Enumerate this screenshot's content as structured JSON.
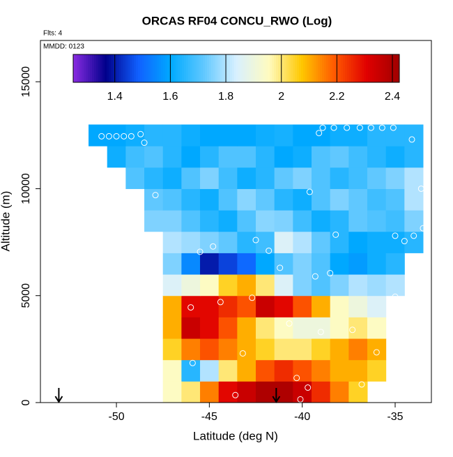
{
  "chart_data": {
    "type": "heatmap",
    "title": "ORCAS RF04 CONCU_RWO (Log)",
    "subtitle": "Flts: 4",
    "annotation": "MMDD: 0123",
    "xlabel": "Latitude (deg N)",
    "ylabel": "Altitude (m)",
    "xlim": [
      -54.09,
      -33.05
    ],
    "ylim": [
      0,
      16930
    ],
    "xticks": [
      -50,
      -45,
      -40,
      -35
    ],
    "yticks": [
      0,
      5000,
      10000,
      15000
    ],
    "x": [
      -51,
      -50,
      -49,
      -48,
      -47,
      -46,
      -45,
      -44,
      -43,
      -42,
      -41,
      -40,
      -39,
      -38,
      -37,
      -36,
      -35,
      -34
    ],
    "y": [
      500,
      1500,
      2500,
      3500,
      4500,
      5500,
      6500,
      7500,
      8500,
      9500,
      10500,
      11500,
      12500
    ],
    "z": [
      [
        null,
        null,
        null,
        null,
        1.95,
        2.0,
        2.15,
        2.3,
        2.35,
        2.4,
        2.4,
        2.35,
        2.25,
        2.15,
        2.05,
        null,
        null,
        null
      ],
      [
        null,
        null,
        null,
        null,
        1.95,
        1.65,
        1.8,
        2.0,
        2.1,
        2.2,
        2.25,
        2.2,
        2.15,
        2.1,
        2.1,
        2.05,
        null,
        null
      ],
      [
        null,
        null,
        null,
        null,
        2.05,
        2.15,
        2.2,
        2.15,
        2.1,
        2.05,
        2.0,
        2.0,
        2.05,
        2.1,
        2.15,
        2.1,
        null,
        null
      ],
      [
        null,
        null,
        null,
        null,
        2.1,
        2.35,
        2.3,
        2.2,
        2.1,
        2.0,
        1.95,
        1.9,
        1.9,
        1.95,
        2.0,
        1.95,
        null,
        null
      ],
      [
        null,
        null,
        null,
        null,
        2.1,
        2.3,
        2.3,
        2.25,
        2.2,
        2.35,
        2.3,
        2.2,
        2.1,
        1.95,
        1.9,
        1.85,
        null,
        null
      ],
      [
        null,
        null,
        null,
        null,
        1.85,
        1.9,
        1.95,
        2.05,
        2.1,
        2.0,
        1.85,
        1.75,
        1.7,
        1.75,
        1.8,
        1.78,
        1.8,
        null
      ],
      [
        null,
        null,
        null,
        null,
        1.75,
        1.55,
        1.4,
        1.45,
        1.5,
        1.6,
        1.7,
        1.75,
        1.7,
        1.6,
        1.58,
        1.62,
        1.65,
        null
      ],
      [
        null,
        null,
        null,
        null,
        1.8,
        1.78,
        1.75,
        1.72,
        1.65,
        1.68,
        1.85,
        1.8,
        1.72,
        1.65,
        1.6,
        1.62,
        1.62,
        1.65
      ],
      [
        null,
        null,
        null,
        1.75,
        1.75,
        1.7,
        1.65,
        1.62,
        1.7,
        1.76,
        1.75,
        1.68,
        1.62,
        1.65,
        1.72,
        1.7,
        1.68,
        1.75
      ],
      [
        null,
        null,
        null,
        1.72,
        1.7,
        1.65,
        1.62,
        1.7,
        1.76,
        1.72,
        1.65,
        1.62,
        1.7,
        1.75,
        1.72,
        1.68,
        1.7,
        1.8
      ],
      [
        null,
        null,
        1.7,
        1.65,
        1.62,
        1.7,
        1.75,
        1.68,
        1.62,
        1.65,
        1.72,
        1.75,
        1.7,
        1.65,
        1.68,
        1.72,
        1.75,
        1.8
      ],
      [
        null,
        1.62,
        1.68,
        1.7,
        1.65,
        1.6,
        1.65,
        1.7,
        1.7,
        1.65,
        1.6,
        1.62,
        1.7,
        1.72,
        1.68,
        1.65,
        1.62,
        1.65
      ],
      [
        1.6,
        1.6,
        1.62,
        1.65,
        1.65,
        1.62,
        1.6,
        1.6,
        1.6,
        1.62,
        1.63,
        1.6,
        1.6,
        1.62,
        1.62,
        1.65,
        1.65,
        1.65
      ]
    ],
    "clim": [
      1.25,
      2.425
    ],
    "cticks": [
      1.4,
      1.6,
      1.8,
      2.0,
      2.2,
      2.4
    ],
    "colormap": [
      "#8a2be2",
      "#00008b",
      "#1060ff",
      "#00aaff",
      "#60c8ff",
      "#d8f0ff",
      "#fffbc0",
      "#ffc800",
      "#ff5a00",
      "#e00000",
      "#a00000"
    ],
    "points": {
      "color": "#ffffff",
      "x": [
        -50.8,
        -50.4,
        -50,
        -49.6,
        -49.2,
        -48.7,
        -48.5,
        -47.9,
        -45.5,
        -44.8,
        -41.2,
        -39.3,
        -38.5,
        -42.7,
        -44.4,
        -46,
        -40.7,
        -39,
        -37.3,
        -36,
        -45.9,
        -43.2,
        -40.3,
        -39.7,
        -40.1,
        -43.6,
        -36.8,
        -35,
        -35,
        -34,
        -34.5,
        -33.5,
        -33.6,
        -34.1,
        -39.6,
        -38.2,
        -39.1,
        -38.9,
        -38.3,
        -37.6,
        -36.9,
        -36.3,
        -35.7,
        -35.1,
        -41.8,
        -42.5
      ],
      "y": [
        12450,
        12450,
        12450,
        12450,
        12450,
        12550,
        12150,
        9700,
        7050,
        7300,
        6300,
        5900,
        6050,
        4900,
        4700,
        4450,
        3700,
        3300,
        3400,
        2350,
        1850,
        2300,
        1150,
        700,
        150,
        350,
        850,
        4950,
        7800,
        7800,
        7550,
        8150,
        10000,
        12300,
        9850,
        7850,
        12600,
        12850,
        12850,
        12850,
        12850,
        12850,
        12850,
        12850,
        7100,
        7600
      ]
    },
    "arrows_x": [
      -53.1,
      -41.4
    ],
    "arrow_color": "#000000"
  }
}
